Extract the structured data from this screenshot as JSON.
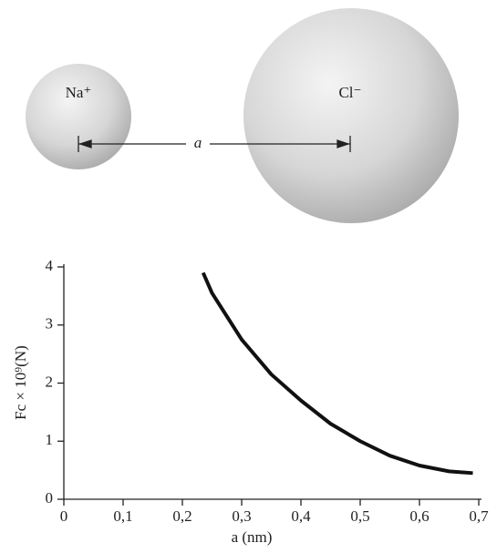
{
  "chart_data": {
    "type": "line",
    "annotations": [
      "Na⁺",
      "Cl⁻",
      "a"
    ],
    "x_label": "a (nm)",
    "y_label": "Fc × 10⁹(N)",
    "x": [
      0.235,
      0.25,
      0.3,
      0.35,
      0.4,
      0.45,
      0.5,
      0.55,
      0.6,
      0.65,
      0.69
    ],
    "values": [
      3.9,
      3.55,
      2.75,
      2.15,
      1.7,
      1.3,
      1.0,
      0.75,
      0.58,
      0.48,
      0.45
    ],
    "color": "#111111",
    "xlim": [
      0,
      0.7
    ],
    "xticks": [
      0,
      {
        "value": 0.1,
        "label": "0,1"
      },
      {
        "value": 0.2,
        "label": "0,2"
      },
      {
        "value": 0.3,
        "label": "0,3"
      },
      {
        "value": 0.4,
        "label": "0,4"
      },
      {
        "value": 0.5,
        "label": "0,5"
      },
      {
        "value": 0.6,
        "label": "0,6"
      },
      {
        "value": 0.7,
        "label": "0,7"
      }
    ],
    "ylim": [
      0,
      4
    ],
    "yticks": [
      0,
      1,
      2,
      3,
      4
    ]
  }
}
